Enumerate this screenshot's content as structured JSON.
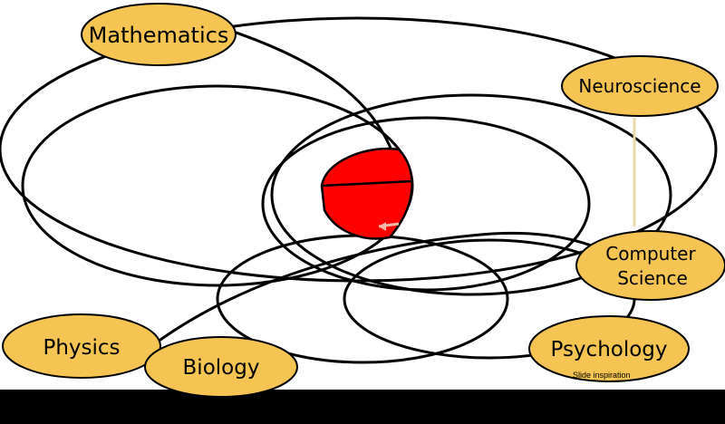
{
  "diagram": {
    "fields": {
      "mathematics": "Mathematics",
      "neuroscience": "Neuroscience",
      "computer_science_line1": "Computer",
      "computer_science_line2": "Science",
      "physics": "Physics",
      "biology": "Biology",
      "psychology": "Psychology"
    },
    "footnote": "Slide inspiration",
    "colors": {
      "background": "#000000",
      "label_fill": "#f5c452",
      "overlap_fill": "#ff0000",
      "outline": "#000000",
      "arrow": "#f6b8a8"
    }
  }
}
